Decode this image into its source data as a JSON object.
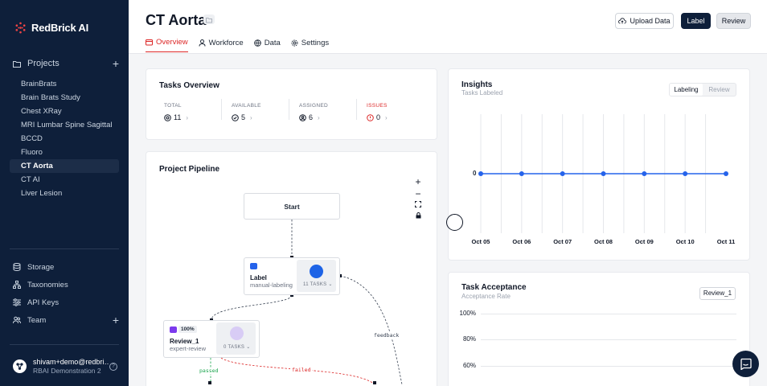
{
  "brand": {
    "name": "RedBrick AI"
  },
  "sidebar": {
    "projects_label": "Projects",
    "projects": [
      "BrainBrats",
      "Brain Brats Study",
      "Chest XRay",
      "MRI Lumbar Spine Sagittal",
      "BCCD",
      "Fluoro",
      "CT Aorta",
      "CT AI",
      "Liver Lesion"
    ],
    "active_project": "CT Aorta",
    "bottom": {
      "storage": "Storage",
      "taxonomies": "Taxonomies",
      "api_keys": "API Keys",
      "team": "Team"
    },
    "user": {
      "email": "shivam+demo@redbric...",
      "org": "RBAI Demonstration 2"
    }
  },
  "header": {
    "title": "CT Aorta",
    "tabs": {
      "overview": "Overview",
      "workforce": "Workforce",
      "data": "Data",
      "settings": "Settings"
    },
    "buttons": {
      "upload": "Upload Data",
      "label": "Label",
      "review": "Review"
    }
  },
  "tasks_overview": {
    "title": "Tasks Overview",
    "total": {
      "label": "TOTAL",
      "value": "11"
    },
    "available": {
      "label": "AVAILABLE",
      "value": "5"
    },
    "assigned": {
      "label": "ASSIGNED",
      "value": "6"
    },
    "issues": {
      "label": "ISSUES",
      "value": "0"
    }
  },
  "pipeline": {
    "title": "Project Pipeline",
    "zoom_controls": {
      "zoom_in": "+",
      "zoom_out": "−",
      "fit": "⛶",
      "lock": "🔒"
    },
    "start": "Start",
    "label_node": {
      "title": "Label",
      "subtitle": "manual-labeling",
      "tasks": "11 TASKS"
    },
    "review_node": {
      "badge": "100%",
      "title": "Review_1",
      "subtitle": "expert-review",
      "tasks": "0 TASKS"
    },
    "edges": {
      "feedback": "feedback",
      "passed": "passed",
      "failed": "failed"
    }
  },
  "insights": {
    "title": "Insights",
    "subtitle": "Tasks Labeled",
    "toggle": {
      "labeling": "Labeling",
      "review": "Review",
      "selected": "Labeling"
    },
    "y_label": "0"
  },
  "chart_data": {
    "type": "line",
    "x": [
      "Oct 05",
      "Oct 06",
      "Oct 07",
      "Oct 08",
      "Oct 09",
      "Oct 10",
      "Oct 11"
    ],
    "series": [
      {
        "values": [
          0,
          0,
          0,
          0,
          0,
          0,
          0
        ]
      }
    ],
    "color": "#2563eb"
  },
  "task_acceptance": {
    "title": "Task Acceptance",
    "subtitle": "Acceptance Rate",
    "dropdown": "Review_1",
    "y_ticks": [
      "100%",
      "80%",
      "60%"
    ]
  }
}
